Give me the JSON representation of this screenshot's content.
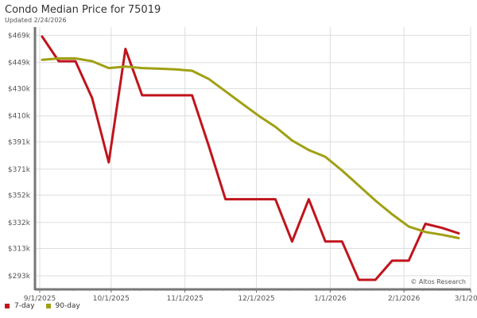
{
  "header": {
    "title": "Condo Median Price for 75019",
    "subtitle": "Updated 2/24/2026"
  },
  "credit": "© Altos Research",
  "chart_data": {
    "type": "line",
    "title": "Condo Median Price for 75019",
    "subtitle": "Updated 2/24/2026",
    "xlabel": "",
    "ylabel": "",
    "x_tick_labels": [
      "9/1/2025",
      "10/1/2025",
      "11/1/2025",
      "12/1/2025",
      "1/1/2026",
      "2/1/2026",
      "3/1/2026"
    ],
    "y_tick_labels": [
      "$293k",
      "$313k",
      "$332k",
      "$352k",
      "$371k",
      "$391k",
      "$410k",
      "$430k",
      "$449k",
      "$469k"
    ],
    "y_ticks": [
      293,
      313,
      332,
      352,
      371,
      391,
      410,
      430,
      449,
      469
    ],
    "xlim": [
      "2025-08-30",
      "2026-03-01"
    ],
    "ylim": [
      283,
      475
    ],
    "grid": true,
    "legend_position": "bottom-left",
    "series": [
      {
        "name": "7-day",
        "color": "#c0141c",
        "points": [
          [
            "2025-09-02",
            468
          ],
          [
            "2025-09-09",
            450
          ],
          [
            "2025-09-16",
            450
          ],
          [
            "2025-09-23",
            423
          ],
          [
            "2025-09-30",
            376
          ],
          [
            "2025-10-07",
            459
          ],
          [
            "2025-10-14",
            425
          ],
          [
            "2025-10-21",
            425
          ],
          [
            "2025-10-28",
            425
          ],
          [
            "2025-11-04",
            425
          ],
          [
            "2025-11-11",
            388
          ],
          [
            "2025-11-18",
            349
          ],
          [
            "2025-11-25",
            349
          ],
          [
            "2025-12-02",
            349
          ],
          [
            "2025-12-09",
            349
          ],
          [
            "2025-12-16",
            318
          ],
          [
            "2025-12-23",
            349
          ],
          [
            "2025-12-30",
            318
          ],
          [
            "2026-01-06",
            318
          ],
          [
            "2026-01-13",
            290
          ],
          [
            "2026-01-20",
            290
          ],
          [
            "2026-01-27",
            304
          ],
          [
            "2026-02-03",
            304
          ],
          [
            "2026-02-10",
            331
          ],
          [
            "2026-02-17",
            328
          ],
          [
            "2026-02-24",
            324
          ]
        ]
      },
      {
        "name": "90-day",
        "color": "#a0a014",
        "points": [
          [
            "2025-09-02",
            451
          ],
          [
            "2025-09-09",
            452
          ],
          [
            "2025-09-16",
            452
          ],
          [
            "2025-09-23",
            450
          ],
          [
            "2025-09-30",
            445
          ],
          [
            "2025-10-07",
            446
          ],
          [
            "2025-10-14",
            445
          ],
          [
            "2025-10-21",
            444.5
          ],
          [
            "2025-10-28",
            444
          ],
          [
            "2025-11-04",
            443
          ],
          [
            "2025-11-11",
            437
          ],
          [
            "2025-11-18",
            428
          ],
          [
            "2025-11-25",
            419
          ],
          [
            "2025-12-02",
            410
          ],
          [
            "2025-12-09",
            402
          ],
          [
            "2025-12-16",
            392
          ],
          [
            "2025-12-23",
            385
          ],
          [
            "2025-12-30",
            380
          ],
          [
            "2026-01-06",
            370
          ],
          [
            "2026-01-13",
            359
          ],
          [
            "2026-01-20",
            348
          ],
          [
            "2026-01-27",
            338
          ],
          [
            "2026-02-03",
            329
          ],
          [
            "2026-02-10",
            325
          ],
          [
            "2026-02-17",
            323
          ],
          [
            "2026-02-24",
            320.5
          ]
        ]
      }
    ]
  }
}
